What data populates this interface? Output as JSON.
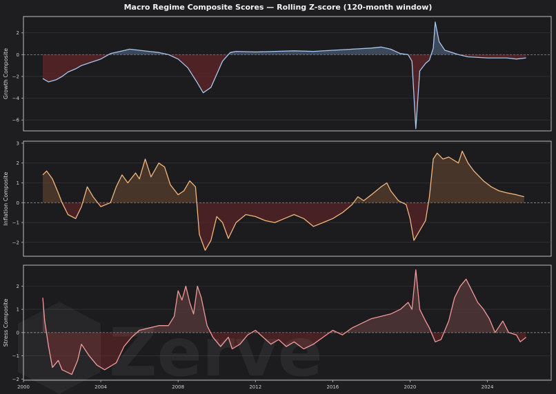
{
  "chart_data": {
    "type": "line",
    "title": "Macro Regime Composite Scores — Rolling Z-score (120-month window)",
    "x_axis": {
      "range": [
        2000,
        2027.3
      ],
      "ticks": [
        "2000",
        "2004",
        "2008",
        "2012",
        "2016",
        "2020",
        "2024"
      ]
    },
    "watermark": "Zerve",
    "panels": [
      {
        "name": "growth",
        "ylabel": "Growth Composite",
        "ylim": [
          -7,
          3.5
        ],
        "yticks": [
          "2",
          "0",
          "−2",
          "−4",
          "−6"
        ],
        "color": "#a8c8f0",
        "fill_pos": "#5a6d8a",
        "fill_neg": "#7a2a2a",
        "series": [
          [
            2001.0,
            -2.2
          ],
          [
            2001.3,
            -2.5
          ],
          [
            2001.7,
            -2.3
          ],
          [
            2002.0,
            -2.0
          ],
          [
            2002.3,
            -1.6
          ],
          [
            2002.7,
            -1.3
          ],
          [
            2003.0,
            -1.0
          ],
          [
            2003.5,
            -0.7
          ],
          [
            2004.0,
            -0.4
          ],
          [
            2004.5,
            0.1
          ],
          [
            2005.0,
            0.3
          ],
          [
            2005.5,
            0.5
          ],
          [
            2006.0,
            0.4
          ],
          [
            2006.5,
            0.3
          ],
          [
            2007.0,
            0.2
          ],
          [
            2007.5,
            0.0
          ],
          [
            2008.0,
            -0.4
          ],
          [
            2008.5,
            -1.2
          ],
          [
            2009.0,
            -2.6
          ],
          [
            2009.3,
            -3.5
          ],
          [
            2009.7,
            -3.0
          ],
          [
            2010.0,
            -1.8
          ],
          [
            2010.3,
            -0.6
          ],
          [
            2010.7,
            0.2
          ],
          [
            2011.0,
            0.3
          ],
          [
            2012.0,
            0.25
          ],
          [
            2013.0,
            0.3
          ],
          [
            2014.0,
            0.35
          ],
          [
            2015.0,
            0.3
          ],
          [
            2016.0,
            0.4
          ],
          [
            2017.0,
            0.5
          ],
          [
            2018.0,
            0.6
          ],
          [
            2018.5,
            0.7
          ],
          [
            2019.0,
            0.5
          ],
          [
            2019.5,
            0.1
          ],
          [
            2019.9,
            0.0
          ],
          [
            2020.1,
            -0.6
          ],
          [
            2020.3,
            -6.8
          ],
          [
            2020.5,
            -1.5
          ],
          [
            2020.8,
            -0.8
          ],
          [
            2021.0,
            -0.5
          ],
          [
            2021.2,
            0.6
          ],
          [
            2021.3,
            3.0
          ],
          [
            2021.5,
            1.2
          ],
          [
            2021.8,
            0.4
          ],
          [
            2022.0,
            0.3
          ],
          [
            2022.5,
            0.0
          ],
          [
            2023.0,
            -0.2
          ],
          [
            2024.0,
            -0.3
          ],
          [
            2025.0,
            -0.3
          ],
          [
            2025.5,
            -0.4
          ],
          [
            2026.0,
            -0.3
          ]
        ]
      },
      {
        "name": "inflation",
        "ylabel": "Inflation Composite",
        "ylim": [
          -2.7,
          3.1
        ],
        "yticks": [
          "3",
          "2",
          "1",
          "0",
          "−1",
          "−2"
        ],
        "color": "#f3b87e",
        "fill_pos": "#6b4a33",
        "fill_neg": "#6b2626",
        "series": [
          [
            2001.0,
            1.4
          ],
          [
            2001.2,
            1.6
          ],
          [
            2001.5,
            1.2
          ],
          [
            2001.8,
            0.5
          ],
          [
            2002.0,
            0.0
          ],
          [
            2002.3,
            -0.6
          ],
          [
            2002.7,
            -0.8
          ],
          [
            2003.0,
            -0.2
          ],
          [
            2003.3,
            0.8
          ],
          [
            2003.6,
            0.3
          ],
          [
            2004.0,
            -0.2
          ],
          [
            2004.5,
            0.0
          ],
          [
            2004.8,
            0.8
          ],
          [
            2005.1,
            1.4
          ],
          [
            2005.4,
            1.0
          ],
          [
            2005.8,
            1.5
          ],
          [
            2006.0,
            1.2
          ],
          [
            2006.3,
            2.2
          ],
          [
            2006.6,
            1.3
          ],
          [
            2007.0,
            2.0
          ],
          [
            2007.3,
            1.8
          ],
          [
            2007.6,
            0.9
          ],
          [
            2008.0,
            0.4
          ],
          [
            2008.3,
            0.6
          ],
          [
            2008.6,
            1.1
          ],
          [
            2008.9,
            0.8
          ],
          [
            2009.1,
            -1.6
          ],
          [
            2009.4,
            -2.4
          ],
          [
            2009.7,
            -1.9
          ],
          [
            2010.0,
            -0.7
          ],
          [
            2010.3,
            -1.0
          ],
          [
            2010.6,
            -1.8
          ],
          [
            2011.0,
            -1.0
          ],
          [
            2011.5,
            -0.6
          ],
          [
            2012.0,
            -0.7
          ],
          [
            2012.5,
            -0.9
          ],
          [
            2013.0,
            -1.0
          ],
          [
            2013.5,
            -0.8
          ],
          [
            2014.0,
            -0.6
          ],
          [
            2014.5,
            -0.8
          ],
          [
            2015.0,
            -1.2
          ],
          [
            2015.5,
            -1.0
          ],
          [
            2016.0,
            -0.8
          ],
          [
            2016.5,
            -0.5
          ],
          [
            2017.0,
            -0.1
          ],
          [
            2017.3,
            0.3
          ],
          [
            2017.6,
            0.1
          ],
          [
            2018.0,
            0.4
          ],
          [
            2018.5,
            0.8
          ],
          [
            2018.8,
            1.0
          ],
          [
            2019.0,
            0.6
          ],
          [
            2019.4,
            0.1
          ],
          [
            2019.8,
            -0.1
          ],
          [
            2020.0,
            -0.8
          ],
          [
            2020.2,
            -1.9
          ],
          [
            2020.5,
            -1.4
          ],
          [
            2020.8,
            -0.9
          ],
          [
            2021.0,
            0.3
          ],
          [
            2021.2,
            2.2
          ],
          [
            2021.4,
            2.5
          ],
          [
            2021.7,
            2.2
          ],
          [
            2022.0,
            2.3
          ],
          [
            2022.5,
            2.0
          ],
          [
            2022.7,
            2.6
          ],
          [
            2023.0,
            2.0
          ],
          [
            2023.3,
            1.6
          ],
          [
            2023.8,
            1.1
          ],
          [
            2024.2,
            0.8
          ],
          [
            2024.6,
            0.6
          ],
          [
            2025.0,
            0.5
          ],
          [
            2025.5,
            0.4
          ],
          [
            2025.9,
            0.3
          ]
        ]
      },
      {
        "name": "stress",
        "ylabel": "Stress Composite",
        "ylim": [
          -2.05,
          2.9
        ],
        "yticks": [
          "2",
          "1",
          "0",
          "−1",
          "−2"
        ],
        "color": "#f29a9a",
        "fill_pos": "#6b4444",
        "fill_neg": "#6b2626",
        "series": [
          [
            2001.0,
            1.5
          ],
          [
            2001.1,
            0.5
          ],
          [
            2001.3,
            -0.6
          ],
          [
            2001.5,
            -1.5
          ],
          [
            2001.8,
            -1.2
          ],
          [
            2002.0,
            -1.6
          ],
          [
            2002.5,
            -1.8
          ],
          [
            2002.8,
            -1.2
          ],
          [
            2003.0,
            -0.5
          ],
          [
            2003.4,
            -1.0
          ],
          [
            2003.8,
            -1.4
          ],
          [
            2004.2,
            -1.6
          ],
          [
            2004.8,
            -1.3
          ],
          [
            2005.2,
            -0.6
          ],
          [
            2005.6,
            -0.2
          ],
          [
            2006.0,
            0.1
          ],
          [
            2006.5,
            0.2
          ],
          [
            2007.0,
            0.3
          ],
          [
            2007.5,
            0.3
          ],
          [
            2007.8,
            0.7
          ],
          [
            2008.0,
            1.8
          ],
          [
            2008.2,
            1.4
          ],
          [
            2008.4,
            2.0
          ],
          [
            2008.6,
            1.3
          ],
          [
            2008.8,
            0.8
          ],
          [
            2009.0,
            2.0
          ],
          [
            2009.2,
            1.5
          ],
          [
            2009.5,
            0.3
          ],
          [
            2009.8,
            -0.2
          ],
          [
            2010.2,
            -0.6
          ],
          [
            2010.6,
            -0.2
          ],
          [
            2010.8,
            -0.7
          ],
          [
            2011.2,
            -0.5
          ],
          [
            2011.6,
            -0.1
          ],
          [
            2012.0,
            0.1
          ],
          [
            2012.4,
            -0.2
          ],
          [
            2012.8,
            -0.5
          ],
          [
            2013.2,
            -0.3
          ],
          [
            2013.6,
            -0.6
          ],
          [
            2014.0,
            -0.4
          ],
          [
            2014.5,
            -0.7
          ],
          [
            2015.0,
            -0.5
          ],
          [
            2015.5,
            -0.2
          ],
          [
            2016.0,
            0.1
          ],
          [
            2016.5,
            -0.1
          ],
          [
            2017.0,
            0.2
          ],
          [
            2017.5,
            0.4
          ],
          [
            2018.0,
            0.6
          ],
          [
            2018.5,
            0.7
          ],
          [
            2019.0,
            0.8
          ],
          [
            2019.5,
            1.0
          ],
          [
            2019.9,
            1.3
          ],
          [
            2020.1,
            1.0
          ],
          [
            2020.3,
            2.7
          ],
          [
            2020.5,
            1.0
          ],
          [
            2020.8,
            0.5
          ],
          [
            2021.0,
            0.2
          ],
          [
            2021.3,
            -0.4
          ],
          [
            2021.6,
            -0.3
          ],
          [
            2022.0,
            0.5
          ],
          [
            2022.3,
            1.5
          ],
          [
            2022.6,
            2.0
          ],
          [
            2022.9,
            2.3
          ],
          [
            2023.2,
            1.8
          ],
          [
            2023.5,
            1.3
          ],
          [
            2023.8,
            1.0
          ],
          [
            2024.1,
            0.6
          ],
          [
            2024.4,
            0.0
          ],
          [
            2024.8,
            0.5
          ],
          [
            2025.1,
            0.0
          ],
          [
            2025.5,
            -0.1
          ],
          [
            2025.7,
            -0.4
          ],
          [
            2026.0,
            -0.2
          ]
        ]
      }
    ]
  }
}
